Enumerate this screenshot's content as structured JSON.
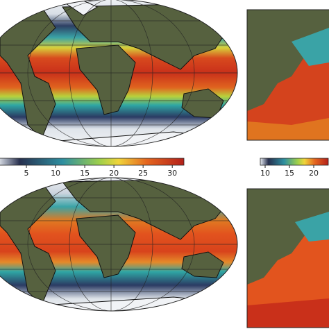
{
  "colorbars": [
    {
      "lim": [
        0,
        32
      ],
      "ticks": [
        5,
        10,
        15,
        20,
        25,
        30
      ]
    },
    {
      "lim": [
        9,
        23
      ],
      "ticks": [
        10,
        15,
        20
      ]
    }
  ]
}
